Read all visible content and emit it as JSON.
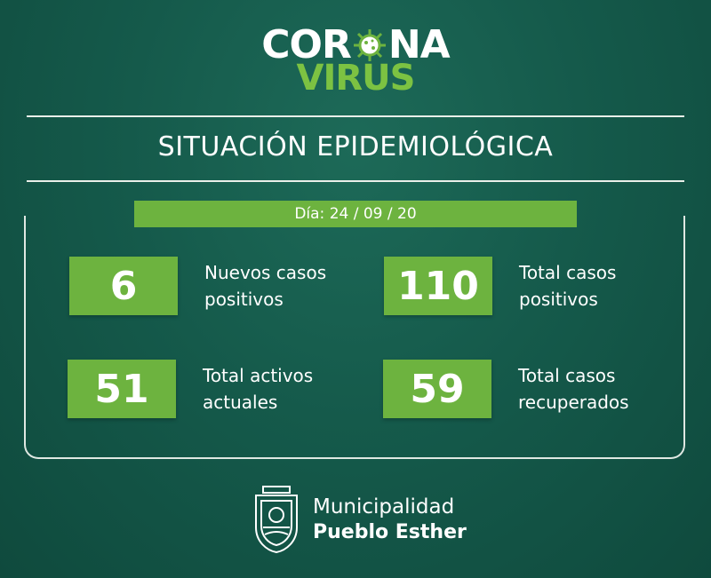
{
  "logo": {
    "corona": "CORONA",
    "virus": "VIRUS"
  },
  "title": "SITUACIÓN EPIDEMIOLÓGICA",
  "date": "Día: 24 / 09 / 20",
  "stats": [
    {
      "value": "6",
      "label": "Nuevos casos\npositivos"
    },
    {
      "value": "110",
      "label": "Total casos\npositivos"
    },
    {
      "value": "51",
      "label": "Total activos\nactuales"
    },
    {
      "value": "59",
      "label": "Total casos\nrecuperados"
    }
  ],
  "footer": {
    "line1": "Municipalidad",
    "line2": "Pueblo Esther"
  },
  "colors": {
    "accent": "#6db33f",
    "background": "#155a4b",
    "rule": "#e9efe9"
  }
}
